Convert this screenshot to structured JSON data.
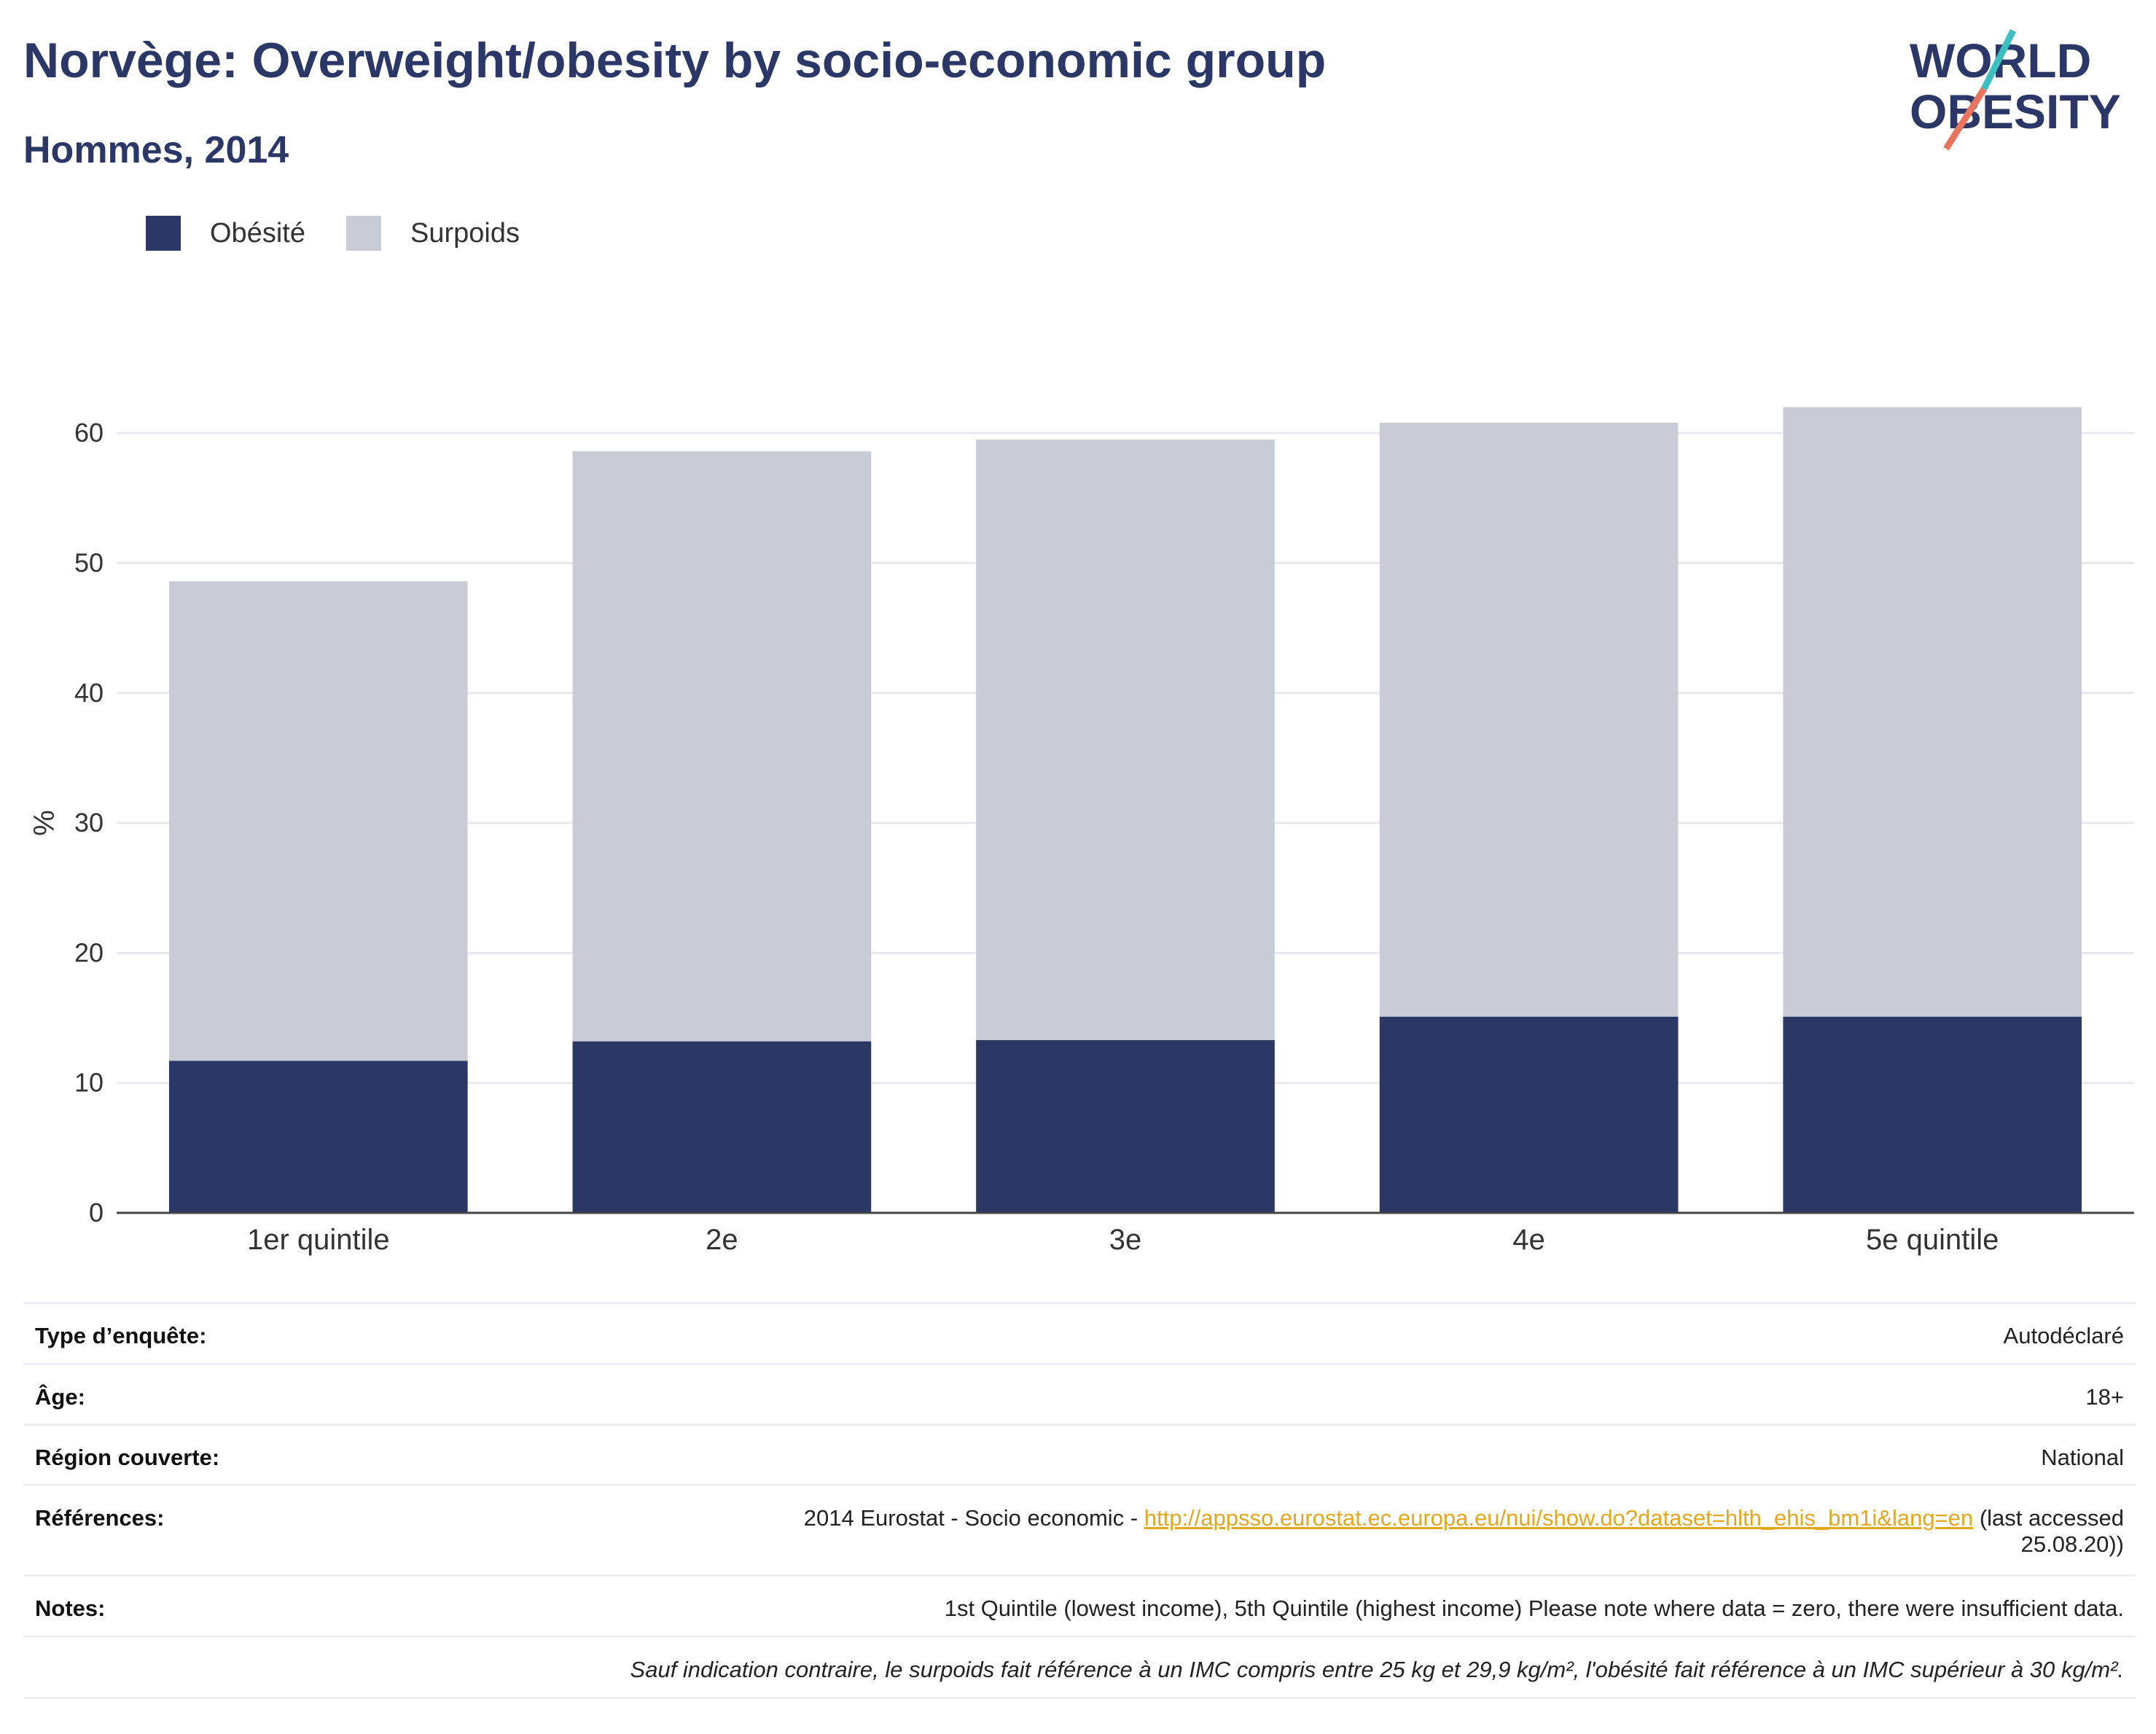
{
  "header": {
    "title": "Norvège: Overweight/obesity by socio-economic group",
    "subtitle": "Hommes, 2014"
  },
  "logo": {
    "line1": "WORLD",
    "line2": "OBESITY"
  },
  "colors": {
    "obesity": "#2b3765",
    "overweight": "#c9cbd7",
    "accent_teal": "#3cbfbe",
    "accent_coral": "#e8735f",
    "link": "#e3a71e"
  },
  "chart_data": {
    "type": "bar",
    "stacked": true,
    "categories": [
      "1er quintile",
      "2e",
      "3e",
      "4e",
      "5e quintile"
    ],
    "series": [
      {
        "name": "Obésité",
        "values": [
          11.7,
          13.2,
          13.3,
          15.1,
          15.1
        ]
      },
      {
        "name": "Surpoids",
        "values": [
          36.9,
          45.4,
          46.2,
          45.7,
          46.9
        ]
      }
    ],
    "ylabel": "%",
    "ylim": [
      0,
      65
    ],
    "yticks": [
      0,
      10,
      20,
      30,
      40,
      50,
      60
    ],
    "grid": true,
    "legend_position": "top-left"
  },
  "meta": {
    "survey_type_label": "Type d’enquête:",
    "survey_type_value": "Autodéclaré",
    "age_label": "Âge:",
    "age_value": "18+",
    "region_label": "Région couverte:",
    "region_value": "National",
    "references_label": "Références:",
    "references_prefix": "2014 Eurostat - Socio economic - ",
    "references_link": "http://appsso.eurostat.ec.europa.eu/nui/show.do?dataset=hlth_ehis_bm1i&lang=en",
    "references_suffix": " (last accessed",
    "references_suffix2": "25.08.20))",
    "notes_label": "Notes:",
    "notes_value": "1st Quintile (lowest income), 5th Quintile (highest income) Please note where data = zero, there were insufficient data.",
    "definition_note": "Sauf indication contraire, le surpoids fait référence à un IMC compris entre 25 kg et 29,9 kg/m², l'obésité fait référence à un IMC supérieur à 30 kg/m²."
  }
}
